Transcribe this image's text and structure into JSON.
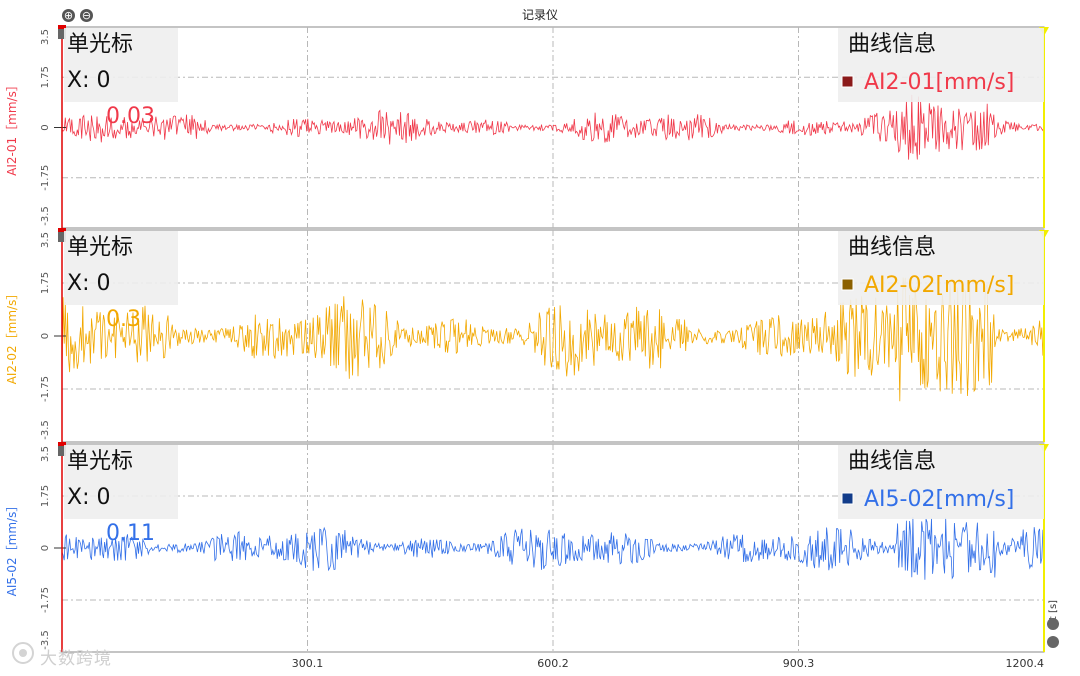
{
  "app": {
    "title": "记录仪",
    "zoom_in_symbol": "⊕",
    "zoom_out_symbol": "⊖",
    "watermark": "大数跨境",
    "time_axis_label": "t [s]"
  },
  "colors": {
    "grid": "#b8b8b8",
    "cursor_line": "#e00000",
    "end_marker": "#f2ee00",
    "info_bg": "#eeeeee"
  },
  "panels": [
    {
      "id": "AI2-01",
      "ylabel": "AI2-01［mm/s］",
      "color": "#f0394a",
      "legend_swatch": "#8b1a1a",
      "legend_label": "AI2-01[mm/s]",
      "cursor": {
        "title": "单光标",
        "x_label": "X: 0",
        "y_value": "0.03"
      },
      "info_title": "曲线信息",
      "amplitude": 0.55
    },
    {
      "id": "AI2-02",
      "ylabel": "AI2-02［mm/s］",
      "color": "#f2a800",
      "legend_swatch": "#8b6000",
      "legend_label": "AI2-02[mm/s]",
      "cursor": {
        "title": "单光标",
        "x_label": "X: 0",
        "y_value": "0.3"
      },
      "info_title": "曲线信息",
      "amplitude": 1.3
    },
    {
      "id": "AI5-02",
      "ylabel": "AI5-02［mm/s］",
      "color": "#3370e8",
      "legend_swatch": "#123c8a",
      "legend_label": "AI5-02[mm/s]",
      "cursor": {
        "title": "单光标",
        "x_label": "X: 0",
        "y_value": "0.11"
      },
      "info_title": "曲线信息",
      "amplitude": 0.75
    }
  ],
  "chart_data": [
    {
      "type": "line",
      "series": [
        {
          "name": "AI2-01[mm/s]",
          "envelope_amplitude": 0.55
        }
      ],
      "xlabel": "t [s]",
      "ylabel": "AI2-01［mm/s］",
      "xlim": [
        0,
        1200.4
      ],
      "ylim": [
        -3.5,
        3.5
      ],
      "xticks": [
        "300.1",
        "600.2",
        "900.3",
        "1200.4"
      ],
      "yticks": [
        "3.5",
        "1.75",
        "0",
        "-1.75",
        "-3.5"
      ],
      "grid": true,
      "legend": "top-right"
    },
    {
      "type": "line",
      "series": [
        {
          "name": "AI2-02[mm/s]",
          "envelope_amplitude": 1.3
        }
      ],
      "xlabel": "t [s]",
      "ylabel": "AI2-02［mm/s］",
      "xlim": [
        0,
        1200.4
      ],
      "ylim": [
        -3.5,
        3.5
      ],
      "xticks": [
        "300.1",
        "600.2",
        "900.3",
        "1200.4"
      ],
      "yticks": [
        "3.5",
        "1.75",
        "0",
        "-1.75",
        "-3.5"
      ],
      "grid": true,
      "legend": "top-right"
    },
    {
      "type": "line",
      "series": [
        {
          "name": "AI5-02[mm/s]",
          "envelope_amplitude": 0.75
        }
      ],
      "xlabel": "t [s]",
      "ylabel": "AI5-02［mm/s］",
      "xlim": [
        0,
        1200.4
      ],
      "ylim": [
        -3.5,
        3.5
      ],
      "xticks": [
        "300.1",
        "600.2",
        "900.3",
        "1200.4"
      ],
      "yticks": [
        "3.5",
        "1.75",
        "0",
        "-1.75",
        "-3.5"
      ],
      "grid": true,
      "legend": "top-right"
    }
  ]
}
